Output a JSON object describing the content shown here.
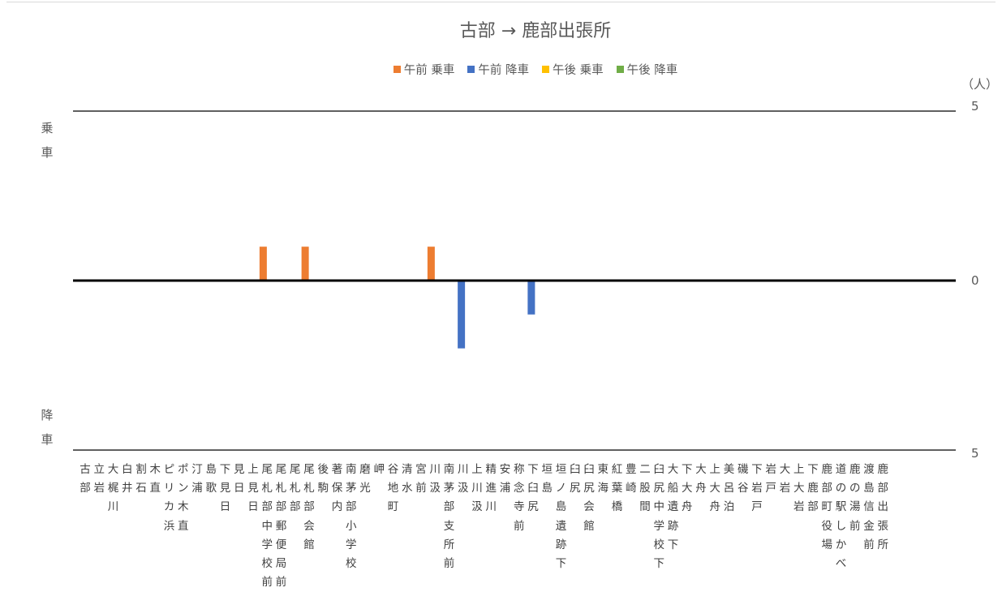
{
  "chart_data": {
    "type": "bar",
    "title": "古部 → 鹿部出張所",
    "unit_label": "（人）",
    "board_label": "乗車",
    "alight_label": "降車",
    "y_ticks": [
      "5",
      "0",
      "5"
    ],
    "ylim": [
      -5,
      5
    ],
    "legend_position": "top",
    "categories": [
      "古部",
      "立岩",
      "大梶川",
      "白井",
      "割石",
      "木直",
      "ピリカ浜",
      "ポン木直",
      "汀浦",
      "島歌",
      "下見日",
      "見日",
      "上見日",
      "尾札部中学校前",
      "尾札部郵便局前",
      "尾札部",
      "尾札部会館",
      "後駒",
      "著保内",
      "南茅部小学校",
      "磨光",
      "岬",
      "谷地町",
      "清水",
      "宮前",
      "川汲",
      "南茅部支所前",
      "川汲",
      "上川汲",
      "精進川",
      "安浦",
      "称念寺前",
      "下臼尻",
      "垣島",
      "垣ノ島遺跡下",
      "臼尻",
      "臼尻会館",
      "東海",
      "紅葉橋",
      "豊崎",
      "二股間",
      "臼尻中学校下",
      "大船遺跡下",
      "下大舟",
      "大舟",
      "上大舟",
      "美呂泊",
      "磯谷",
      "下岩戸",
      "岩戸",
      "大岩",
      "上大岩",
      "下鹿部",
      "鹿部町役場",
      "道の駅しかべ",
      "鹿の湯前",
      "渡島信金前",
      "鹿部出張所"
    ],
    "series": [
      {
        "name": "午前 乗車",
        "color": "#ED7D31",
        "direction": "up",
        "values": [
          0,
          0,
          0,
          0,
          0,
          0,
          0,
          0,
          0,
          0,
          0,
          0,
          0,
          1,
          0,
          0,
          1,
          0,
          0,
          0,
          0,
          0,
          0,
          0,
          0,
          1,
          0,
          0,
          0,
          0,
          0,
          0,
          0,
          0,
          0,
          0,
          0,
          0,
          0,
          0,
          0,
          0,
          0,
          0,
          0,
          0,
          0,
          0,
          0,
          0,
          0,
          0,
          0,
          0,
          0,
          0,
          0,
          0
        ]
      },
      {
        "name": "午前 降車",
        "color": "#4472C4",
        "direction": "down",
        "values": [
          0,
          0,
          0,
          0,
          0,
          0,
          0,
          0,
          0,
          0,
          0,
          0,
          0,
          0,
          0,
          0,
          0,
          0,
          0,
          0,
          0,
          0,
          0,
          0,
          0,
          0,
          2,
          0,
          0,
          0,
          0,
          1,
          0,
          0,
          0,
          0,
          0,
          0,
          0,
          0,
          0,
          0,
          0,
          0,
          0,
          0,
          0,
          0,
          0,
          0,
          0,
          0,
          0,
          0,
          0,
          0,
          0,
          0
        ]
      },
      {
        "name": "午後 乗車",
        "color": "#FFC000",
        "direction": "up",
        "values": [
          0,
          0,
          0,
          0,
          0,
          0,
          0,
          0,
          0,
          0,
          0,
          0,
          0,
          0,
          0,
          0,
          0,
          0,
          0,
          0,
          0,
          0,
          0,
          0,
          0,
          0,
          0,
          0,
          0,
          0,
          0,
          0,
          0,
          0,
          0,
          0,
          0,
          0,
          0,
          0,
          0,
          0,
          0,
          0,
          0,
          0,
          0,
          0,
          0,
          0,
          0,
          0,
          0,
          0,
          0,
          0,
          0,
          0
        ]
      },
      {
        "name": "午後 降車",
        "color": "#70AD47",
        "direction": "down",
        "values": [
          0,
          0,
          0,
          0,
          0,
          0,
          0,
          0,
          0,
          0,
          0,
          0,
          0,
          0,
          0,
          0,
          0,
          0,
          0,
          0,
          0,
          0,
          0,
          0,
          0,
          0,
          0,
          0,
          0,
          0,
          0,
          0,
          0,
          0,
          0,
          0,
          0,
          0,
          0,
          0,
          0,
          0,
          0,
          0,
          0,
          0,
          0,
          0,
          0,
          0,
          0,
          0,
          0,
          0,
          0,
          0,
          0,
          0
        ]
      }
    ]
  }
}
